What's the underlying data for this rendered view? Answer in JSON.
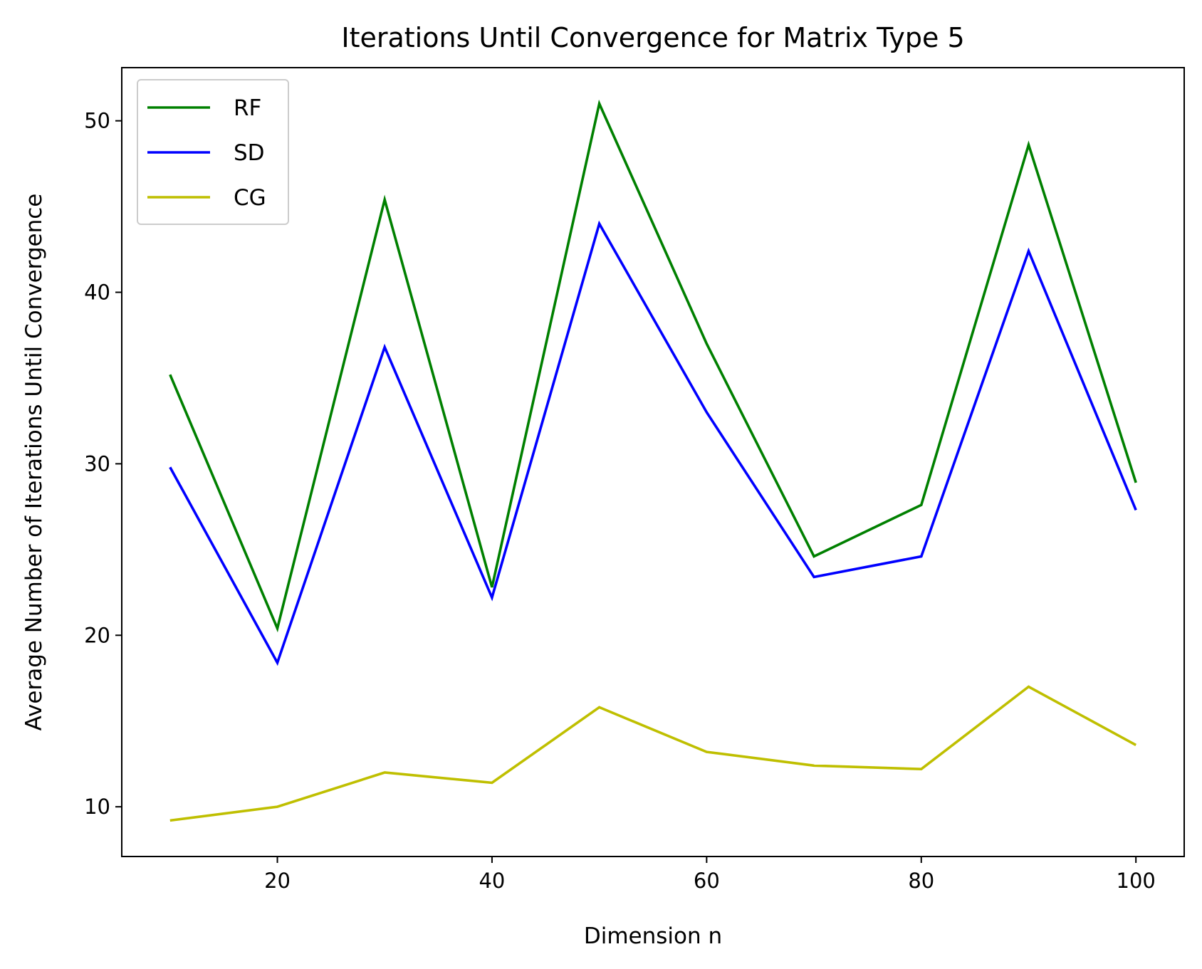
{
  "chart_data": {
    "type": "line",
    "title": "Iterations Until Convergence for Matrix Type 5",
    "xlabel": "Dimension n",
    "ylabel": "Average Number of Iterations Until Convergence",
    "x": [
      10,
      20,
      30,
      40,
      50,
      60,
      70,
      80,
      90,
      100
    ],
    "xlim": [
      5.5,
      104.5
    ],
    "ylim": [
      7.1,
      53.1
    ],
    "xticks": [
      20,
      40,
      60,
      80,
      100
    ],
    "yticks": [
      10,
      20,
      30,
      40,
      50
    ],
    "grid": false,
    "legend_position": "top-left",
    "series": [
      {
        "name": "RF",
        "color": "#008000",
        "values": [
          35.2,
          20.4,
          45.4,
          22.8,
          51.0,
          37.0,
          24.6,
          27.6,
          48.6,
          28.9
        ]
      },
      {
        "name": "SD",
        "color": "#0000ff",
        "values": [
          29.8,
          18.4,
          36.8,
          22.2,
          44.0,
          33.0,
          23.4,
          24.6,
          42.4,
          27.3
        ]
      },
      {
        "name": "CG",
        "color": "#bfbf00",
        "values": [
          9.2,
          10.0,
          12.0,
          11.4,
          15.8,
          13.2,
          12.4,
          12.2,
          17.0,
          13.6
        ]
      }
    ]
  }
}
